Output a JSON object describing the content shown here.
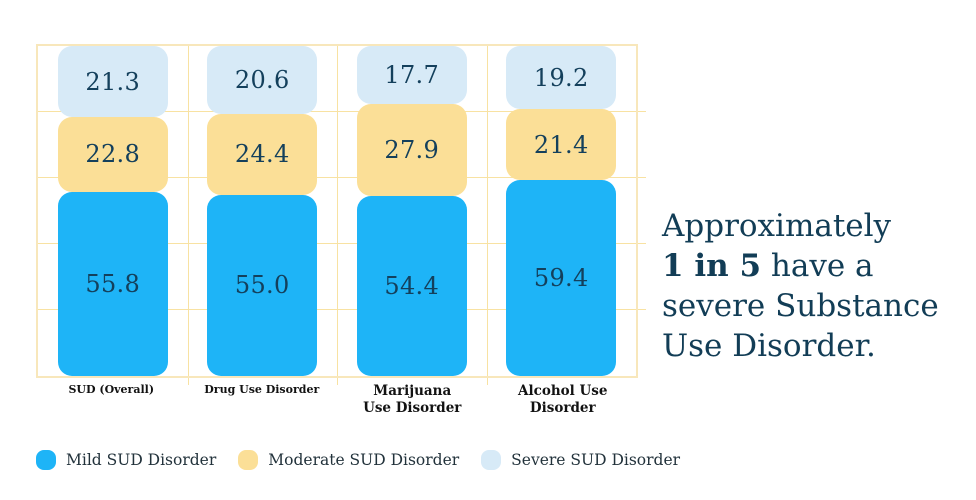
{
  "chart_data": {
    "type": "bar",
    "stacked": true,
    "unit": "percent",
    "categories": [
      "SUD (Overall)",
      "Drug Use Disorder",
      "Marijuana\nUse Disorder",
      "Alcohol Use\nDisorder"
    ],
    "series": [
      {
        "name": "Mild SUD Disorder",
        "color": "#1eb4f7",
        "values": [
          55.8,
          55.0,
          54.4,
          59.4
        ],
        "display": [
          "55.8",
          "55.0",
          "54.4",
          "59.4"
        ]
      },
      {
        "name": "Moderate SUD Disorder",
        "color": "#fbdf97",
        "values": [
          22.8,
          24.4,
          27.9,
          21.4
        ],
        "display": [
          "22.8",
          "24.4",
          "27.9",
          "21.4"
        ]
      },
      {
        "name": "Severe SUD Disorder",
        "color": "#d7eaf7",
        "values": [
          21.3,
          20.6,
          17.7,
          19.2
        ],
        "display": [
          "21.3",
          "20.6",
          "17.7",
          "19.2"
        ]
      }
    ],
    "ylim": [
      0,
      100
    ],
    "gridline_step": 20,
    "grid": true,
    "legend_position": "bottom",
    "value_label_color": "#14405c",
    "grid_color": "#f8e2a2"
  },
  "callout": {
    "line1": "Approximately",
    "line2_bold": "1 in 5",
    "line2_rest": " have a",
    "line3": "severe Substance",
    "line4": "Use Disorder."
  }
}
